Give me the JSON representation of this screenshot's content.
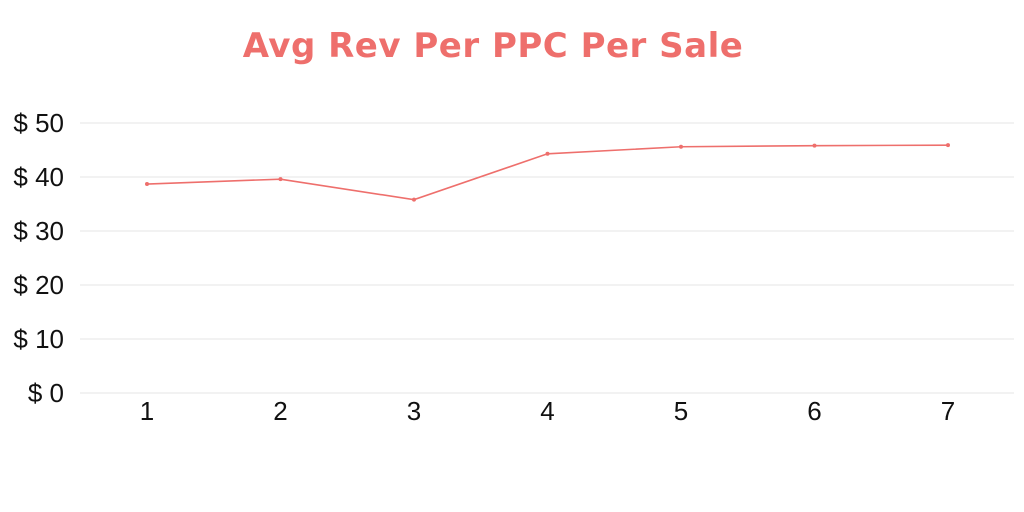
{
  "colors": {
    "accent": "#ee6f6c",
    "grid": "#e6e6e6",
    "text": "#111111"
  },
  "chart_data": {
    "type": "line",
    "title": "Avg Rev Per PPC Per Sale",
    "xlabel": "",
    "ylabel": "",
    "categories": [
      "1",
      "2",
      "3",
      "4",
      "5",
      "6",
      "7"
    ],
    "series": [
      {
        "values": [
          38.7,
          39.6,
          35.8,
          44.3,
          45.6,
          45.8,
          45.9
        ]
      }
    ],
    "ylim": [
      0,
      50
    ],
    "yticks": [
      0,
      10,
      20,
      30,
      40,
      50
    ],
    "ytick_labels": [
      "$ 0",
      "$ 10",
      "$ 20",
      "$ 30",
      "$ 40",
      "$ 50"
    ],
    "grid": true,
    "legend": "none"
  }
}
